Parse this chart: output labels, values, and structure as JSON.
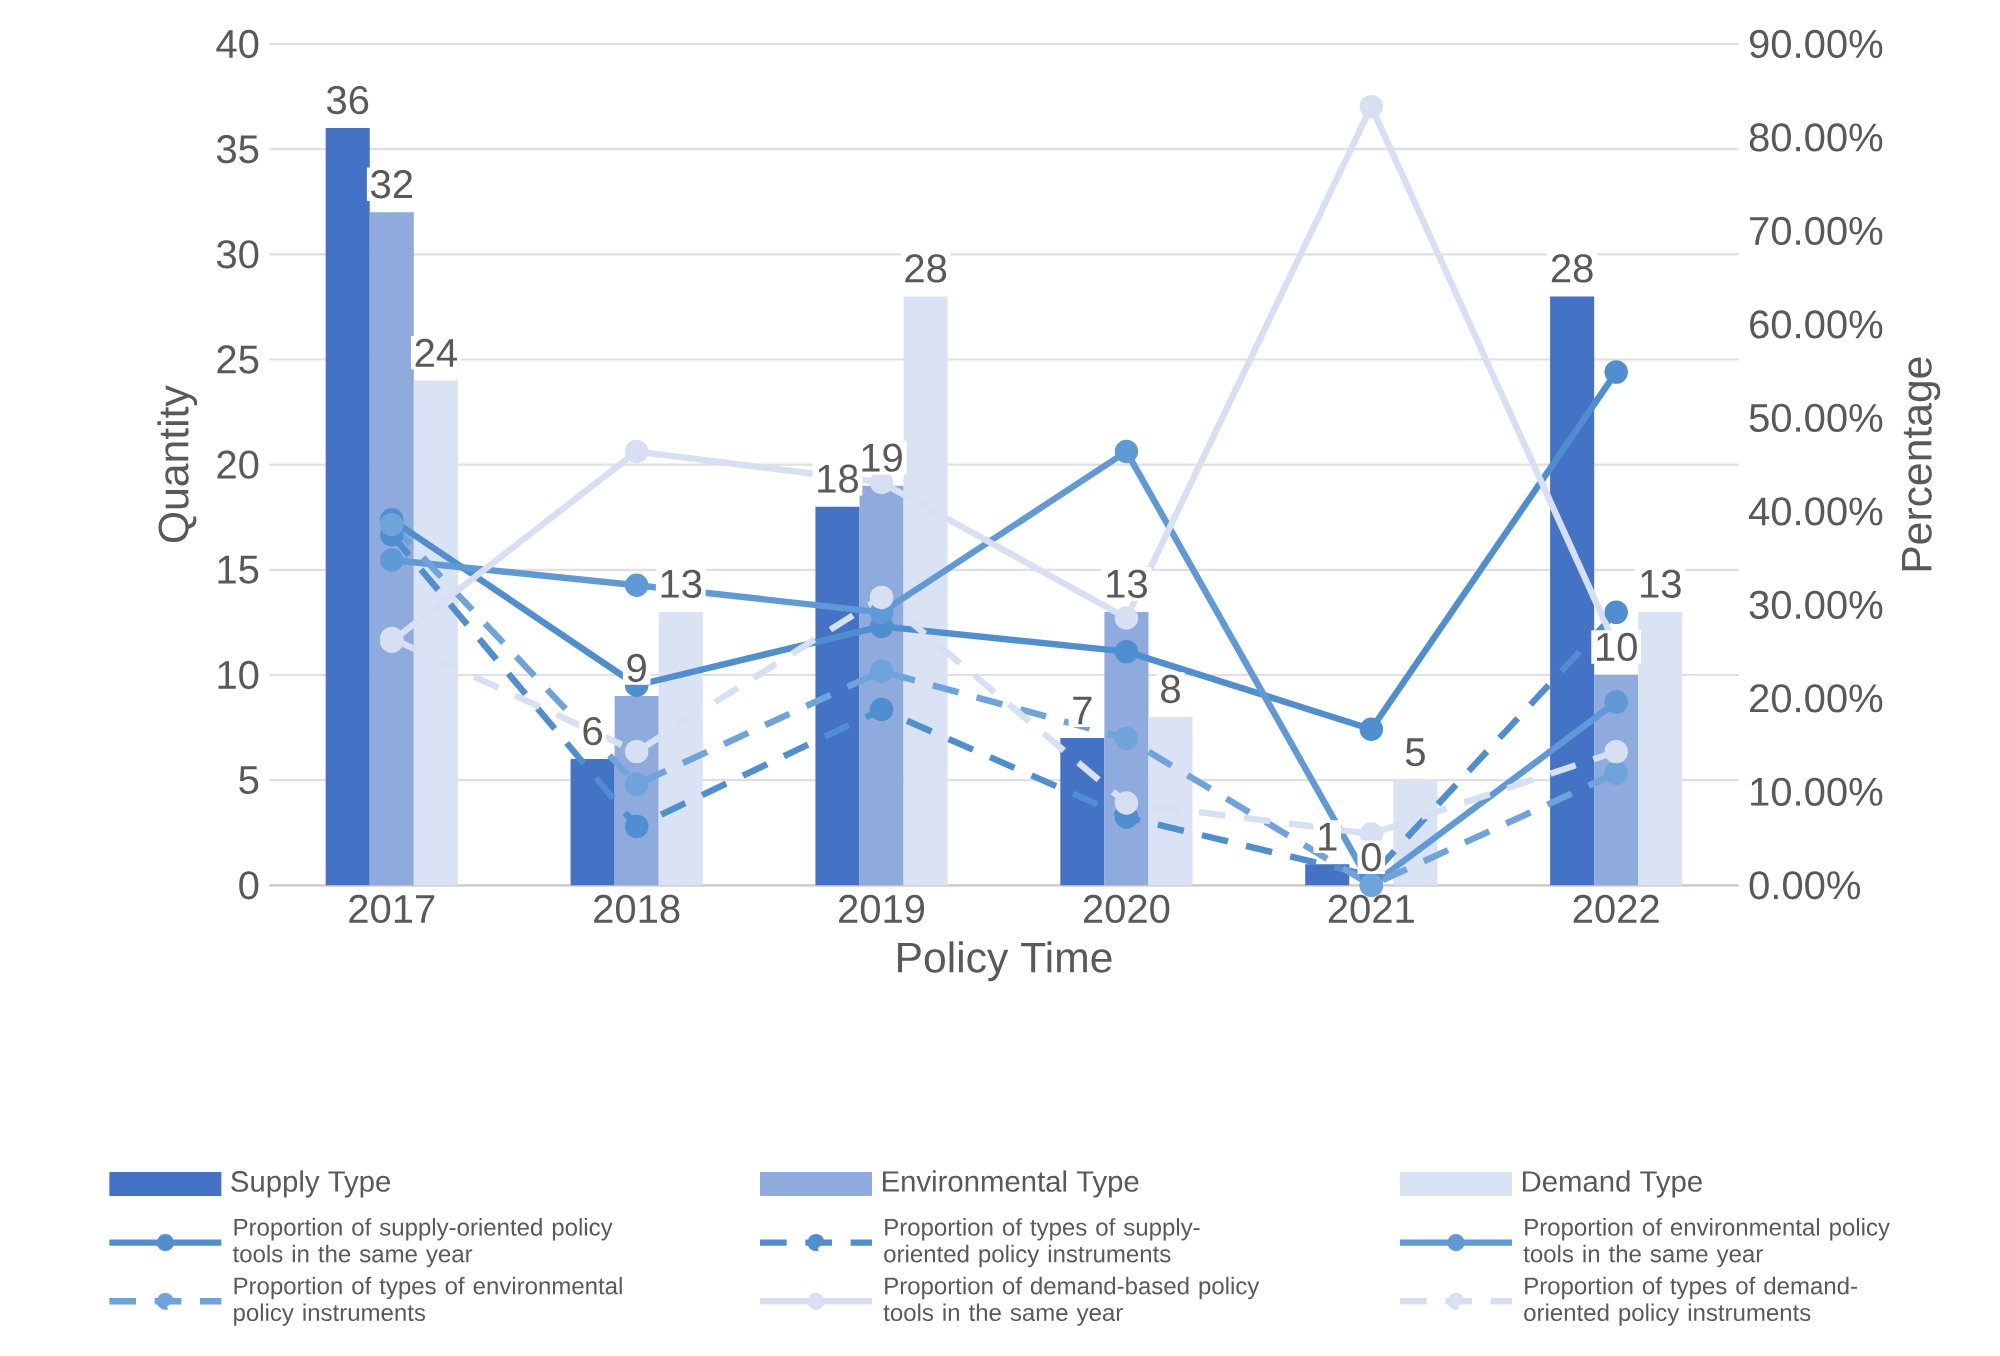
{
  "chart_data": {
    "type": "bar",
    "categories": [
      "2017",
      "2018",
      "2019",
      "2020",
      "2021",
      "2022"
    ],
    "xlabel": "Policy Time",
    "ylabel": "Quantity",
    "y2label": "Percentage",
    "ylim": [
      0,
      40
    ],
    "yticks": [
      0,
      5,
      10,
      15,
      20,
      25,
      30,
      35,
      40
    ],
    "y2lim": [
      0,
      90
    ],
    "y2ticks": [
      {
        "value": 0,
        "label": "0.00%"
      },
      {
        "value": 10,
        "label": "10.00%"
      },
      {
        "value": 20,
        "label": "20.00%"
      },
      {
        "value": 30,
        "label": "30.00%"
      },
      {
        "value": 40,
        "label": "40.00%"
      },
      {
        "value": 50,
        "label": "50.00%"
      },
      {
        "value": 60,
        "label": "60.00%"
      },
      {
        "value": 70,
        "label": "70.00%"
      },
      {
        "value": 80,
        "label": "80.00%"
      },
      {
        "value": 90,
        "label": "90.00%"
      }
    ],
    "grid": "y",
    "legend": "bottom",
    "marker": "circle",
    "series": [
      {
        "name": "Supply Type",
        "color": "#4472c4",
        "values": [
          36,
          6,
          18,
          7,
          1,
          28
        ],
        "value_labels": [
          "36",
          "6",
          "18",
          "7",
          "1",
          "28"
        ]
      },
      {
        "name": "Environmental Type",
        "color": "#8faadc",
        "values": [
          32,
          9,
          19,
          13,
          0,
          10
        ],
        "value_labels": [
          "32",
          "9",
          "19",
          "13",
          "0",
          "10"
        ]
      },
      {
        "name": "Demand Type",
        "color": "#dae3f3",
        "values": [
          24,
          13,
          28,
          8,
          5,
          13
        ],
        "value_labels": [
          "24",
          "13",
          "28",
          "8",
          "5",
          "13"
        ]
      },
      {
        "name": "Proportion of supply-oriented policy tools in the same year",
        "type": "line",
        "axis": "y2",
        "line_style": "solid",
        "color": "#4f8fcf",
        "values": [
          39.1,
          21.4,
          27.7,
          25.0,
          16.7,
          54.9
        ]
      },
      {
        "name": "Proportion of types of supply-oriented policy instruments",
        "type": "line",
        "axis": "y2",
        "line_style": "dashed",
        "color": "#4f8fcf",
        "values": [
          37.5,
          6.3,
          18.8,
          7.3,
          1.0,
          29.2
        ]
      },
      {
        "name": "Proportion of environmental policy tools in the same year",
        "type": "line",
        "axis": "y2",
        "line_style": "solid",
        "color": "#5f9ad6",
        "values": [
          34.8,
          32.1,
          29.2,
          46.4,
          0,
          19.6
        ]
      },
      {
        "name": "Proportion of types of environmental policy instruments",
        "type": "line",
        "axis": "y2",
        "line_style": "dashed",
        "color": "#6fa3dc",
        "values": [
          38.6,
          10.8,
          22.9,
          15.7,
          0,
          12.0
        ]
      },
      {
        "name": "Proportion of demand-based policy tools in the same year",
        "type": "line",
        "axis": "y2",
        "line_style": "solid",
        "color": "#d6e0f2",
        "values": [
          26.1,
          46.4,
          43.1,
          28.6,
          83.3,
          25.5
        ]
      },
      {
        "name": "Proportion of types of demand-oriented policy instruments",
        "type": "line",
        "axis": "y2",
        "line_style": "dashed",
        "color": "#d6e0f2",
        "values": [
          26.4,
          14.3,
          30.8,
          8.8,
          5.5,
          14.3
        ]
      }
    ]
  }
}
